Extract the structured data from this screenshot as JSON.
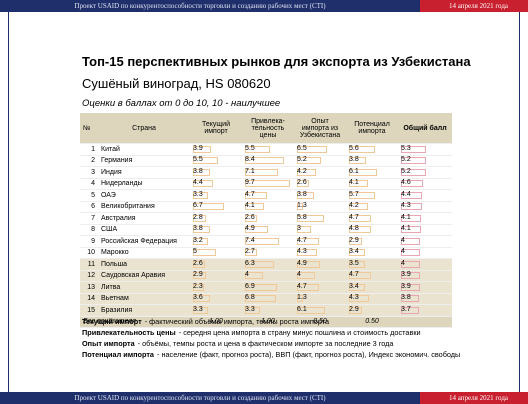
{
  "header": {
    "project": "Проект USAID по конкурентоспособности торговли и созданию рабочих мест (CTI)",
    "date": "14 апреля 2021 года"
  },
  "footer": {
    "project": "Проект USAID по конкурентоспособности торговли и созданию рабочих мест (CTI)",
    "date": "14 апреля 2021 года"
  },
  "title": "Топ-15 перспективных рынков для экспорта из Узбекистана",
  "subtitle": "Сушёный виноград, HS 080620",
  "note": "Оценки в баллах от 0 до 10, 10 - наилучшее",
  "table": {
    "columns": [
      "№",
      "Страна",
      "Текущий импорт",
      "Привлека-тельность цены",
      "Опыт импорта из Узбекистана",
      "Потенциал импорта",
      "Общий балл"
    ],
    "rows": [
      [
        1,
        "Китай",
        3.9,
        5.5,
        6.5,
        5.6,
        5.3
      ],
      [
        2,
        "Германия",
        5.5,
        8.4,
        5.2,
        3.8,
        5.2
      ],
      [
        3,
        "Индия",
        3.8,
        7.1,
        4.2,
        6.1,
        5.2
      ],
      [
        4,
        "Нидерланды",
        4.4,
        9.7,
        2.6,
        4.1,
        4.6
      ],
      [
        5,
        "ОАЭ",
        3.3,
        4.7,
        3.8,
        5.7,
        4.4
      ],
      [
        6,
        "Великобритания",
        6.7,
        4.1,
        1.3,
        4.2,
        4.3
      ],
      [
        7,
        "Австралия",
        2.8,
        2.6,
        5.8,
        4.7,
        4.1
      ],
      [
        8,
        "США",
        3.8,
        4.9,
        3.0,
        4.8,
        4.1
      ],
      [
        9,
        "Российская Федерация",
        3.2,
        7.4,
        4.7,
        2.9,
        4.0
      ],
      [
        10,
        "Марокко",
        5.0,
        2.7,
        4.3,
        3.4,
        4.0
      ],
      [
        11,
        "Польша",
        2.6,
        6.3,
        4.9,
        3.5,
        4.0
      ],
      [
        12,
        "Саудовская Аравия",
        2.9,
        4.0,
        4.0,
        4.7,
        3.9
      ],
      [
        13,
        "Литва",
        2.3,
        6.9,
        4.7,
        3.4,
        3.9
      ],
      [
        14,
        "Вьетнам",
        3.6,
        6.8,
        1.3,
        4.3,
        3.8
      ],
      [
        15,
        "Бразилия",
        3.3,
        3.3,
        6.1,
        2.9,
        3.7
      ]
    ],
    "weights": {
      "label": "Вес показателя",
      "values": [
        "1.00",
        "1.00",
        "0.50",
        "0.50"
      ]
    }
  },
  "legend": [
    {
      "term": "Текущий импорт",
      "text": "- фактический объёмы импорта, темпы роста импорта"
    },
    {
      "term": "Привлекательность цены",
      "text": "- середня цена импорта в страну минус пошлина и стоимость доставки"
    },
    {
      "term": "Опыт импорта",
      "text": "- объёмы, темпы роста и цена в фактическом импорте за последние 3 года"
    },
    {
      "term": "Потенциал импорта",
      "text": "- население (факт, прогноз роста), ВВП (факт, прогноз роста), Индекс экономич. свободы"
    }
  ]
}
